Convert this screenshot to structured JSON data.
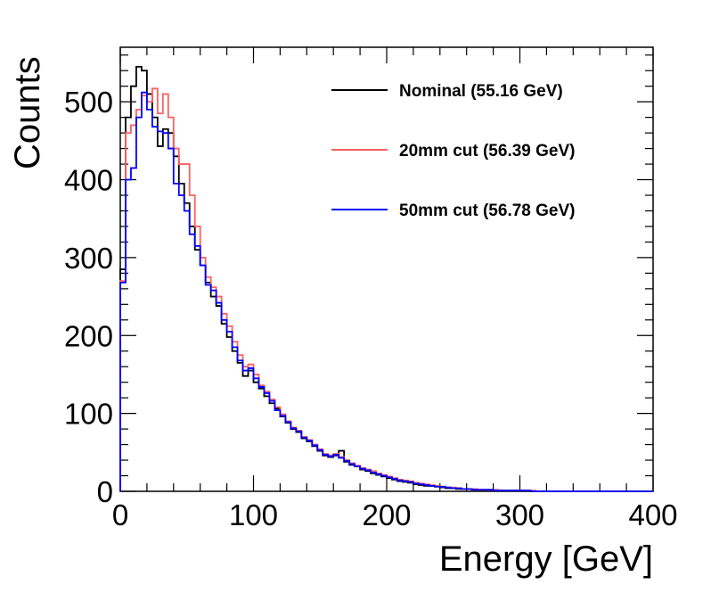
{
  "chart_data": {
    "type": "line",
    "title": "",
    "xlabel": "Energy [GeV]",
    "ylabel": "Counts",
    "xlim": [
      0,
      400
    ],
    "ylim": [
      0,
      570
    ],
    "x_ticks": [
      "0",
      "100",
      "200",
      "300",
      "400"
    ],
    "y_ticks": [
      "0",
      "100",
      "200",
      "300",
      "400",
      "500"
    ],
    "bin_width": 4,
    "grid": false,
    "legend_position": "top-right",
    "series": [
      {
        "name": "Nominal (55.16 GeV)",
        "color": "#000000",
        "values": [
          285,
          480,
          520,
          545,
          540,
          510,
          480,
          443,
          465,
          460,
          430,
          395,
          370,
          340,
          310,
          290,
          268,
          250,
          238,
          215,
          198,
          180,
          165,
          148,
          155,
          140,
          132,
          122,
          113,
          106,
          96,
          88,
          80,
          76,
          68,
          64,
          58,
          52,
          46,
          44,
          46,
          52,
          38,
          34,
          32,
          28,
          26,
          23,
          21,
          19,
          17,
          15,
          13,
          12,
          11,
          9,
          8,
          7,
          7,
          6,
          5,
          4,
          4,
          3,
          3,
          3,
          2,
          2,
          2,
          2,
          1,
          1,
          1,
          1,
          1,
          1,
          1,
          0,
          0,
          0,
          0,
          0,
          0,
          0,
          0,
          0,
          0,
          0,
          0,
          0,
          0,
          0,
          0,
          0,
          0,
          0,
          0,
          0,
          0,
          0
        ]
      },
      {
        "name": "20mm cut (56.39 GeV)",
        "color": "#ff6060",
        "values": [
          270,
          460,
          470,
          490,
          508,
          500,
          517,
          485,
          510,
          480,
          440,
          420,
          420,
          380,
          340,
          300,
          275,
          262,
          250,
          228,
          212,
          192,
          175,
          160,
          163,
          150,
          136,
          128,
          118,
          108,
          99,
          90,
          82,
          78,
          70,
          66,
          60,
          54,
          48,
          46,
          48,
          44,
          40,
          36,
          33,
          30,
          28,
          26,
          23,
          21,
          19,
          17,
          15,
          14,
          13,
          11,
          10,
          9,
          8,
          7,
          6,
          5,
          5,
          4,
          3,
          3,
          3,
          2,
          2,
          2,
          2,
          1,
          1,
          1,
          1,
          1,
          1,
          1,
          0,
          0,
          0,
          0,
          0,
          0,
          0,
          0,
          0,
          0,
          0,
          0,
          0,
          0,
          0,
          0,
          0,
          0,
          0,
          0,
          0,
          0
        ]
      },
      {
        "name": "50mm cut (56.78 GeV)",
        "color": "#0000ff",
        "values": [
          268,
          400,
          415,
          480,
          512,
          490,
          468,
          462,
          460,
          440,
          395,
          380,
          360,
          330,
          315,
          290,
          265,
          258,
          242,
          220,
          205,
          185,
          168,
          155,
          158,
          145,
          134,
          126,
          116,
          104,
          97,
          89,
          81,
          77,
          69,
          65,
          59,
          53,
          47,
          45,
          47,
          43,
          39,
          35,
          32,
          29,
          27,
          24,
          22,
          20,
          18,
          16,
          14,
          13,
          12,
          10,
          9,
          8,
          7,
          6,
          6,
          5,
          4,
          4,
          3,
          3,
          2,
          2,
          2,
          2,
          1,
          1,
          1,
          1,
          1,
          1,
          1,
          0,
          0,
          0,
          0,
          0,
          0,
          0,
          0,
          0,
          0,
          0,
          0,
          0,
          0,
          0,
          0,
          0,
          0,
          0,
          0,
          0,
          0,
          0
        ]
      }
    ]
  }
}
